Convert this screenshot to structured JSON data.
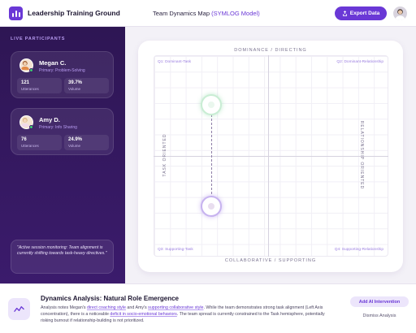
{
  "header": {
    "app_title": "Leadership Training Ground",
    "page_title_prefix": "Team Dynamics Map ",
    "page_title_accent": "(SYMLOG Model)",
    "export_label": "Export Data"
  },
  "sidebar": {
    "section_label": "LIVE PARTICIPANTS",
    "participants": [
      {
        "name": "Megan C.",
        "role": "Primary: Problem-Solving",
        "utterances": "121",
        "utterances_label": "Utterances",
        "volume": "39.7%",
        "volume_label": "Volume"
      },
      {
        "name": "Amy D.",
        "role": "Primary: Info Sharing",
        "utterances": "76",
        "utterances_label": "Utterances",
        "volume": "24.9%",
        "volume_label": "Volume"
      }
    ],
    "monitor_note": "\"Active session monitoring: Team alignment is currently shifting towards task-heavy directives.\""
  },
  "map": {
    "axis_top": "DOMINANCE / DIRECTING",
    "axis_bottom": "COLLABORATIVE / SUPPORTING",
    "axis_left": "TASK ORIENTED",
    "axis_right": "RELATIONSHIP ORIENTED",
    "q1": "Q1: Dominant-Task",
    "q2": "Q2: Dominant-Relationship",
    "q3": "Q3: Supporting-Task",
    "q4": "Q4: Supporting-Relationship"
  },
  "analysis": {
    "title": "Dynamics Analysis: Natural Role Emergence",
    "body_1": "Analysis notes Megan's ",
    "hl_1": "direct coaching style",
    "body_2": " and Amy's ",
    "hl_2": "supporting collaborative style",
    "body_3": ". While the team demonstrates strong task alignment (Left Axis concentration), there is a noticeable ",
    "hl_3": "deficit in socio-emotional behaviors",
    "body_4": ". The team spread is currently constrained to the Task hemisphere, potentially risking burnout if relationship-building is not prioritized.",
    "ai_button": "Add AI Intervention",
    "dismiss": "Dismiss Analysis"
  },
  "colors": {
    "accent": "#6a38d6",
    "sidebar_bg": "#2e1654",
    "online": "#3ecf6e",
    "megan_ring": "#c9edd4",
    "amy_ring": "#c7b3ef"
  },
  "icons": {
    "logo": "bar-chart-icon",
    "export": "export-icon",
    "analysis": "trend-line-icon"
  }
}
